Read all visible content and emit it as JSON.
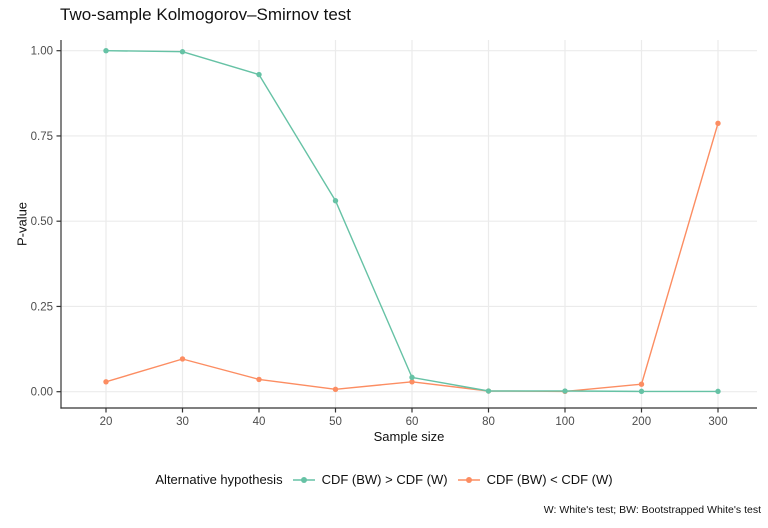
{
  "chart_data": {
    "type": "line",
    "title": "Two-sample Kolmogorov–Smirnov test",
    "xlabel": "Sample size",
    "ylabel": "P-value",
    "caption": "W: White's test; BW: Bootstrapped White's test",
    "categories": [
      "20",
      "30",
      "40",
      "50",
      "60",
      "80",
      "100",
      "200",
      "300"
    ],
    "x_scale": "discrete-evenly-spaced",
    "ylim": [
      0,
      1
    ],
    "y_ticks": [
      {
        "value": 0.0,
        "label": "0.00"
      },
      {
        "value": 0.25,
        "label": "0.25"
      },
      {
        "value": 0.5,
        "label": "0.50"
      },
      {
        "value": 0.75,
        "label": "0.75"
      },
      {
        "value": 1.0,
        "label": "1.00"
      }
    ],
    "grid": "major-only-light-gray",
    "legend": {
      "title": "Alternative hypothesis",
      "position": "bottom"
    },
    "series": [
      {
        "name": "CDF (BW) > CDF (W)",
        "color": "#66C2A5",
        "values": [
          1.0,
          0.997,
          0.93,
          0.56,
          0.042,
          0.002,
          0.002,
          0.001,
          0.001
        ]
      },
      {
        "name": "CDF (BW) < CDF (W)",
        "color": "#FC8D62",
        "values": [
          0.029,
          0.096,
          0.036,
          0.007,
          0.029,
          0.002,
          0.001,
          0.022,
          0.787
        ]
      }
    ],
    "style": {
      "grid_color": "#EBEBEB",
      "axis_color": "#333333",
      "tick_label_color": "#4D4D4D",
      "background": "#FFFFFF"
    }
  }
}
